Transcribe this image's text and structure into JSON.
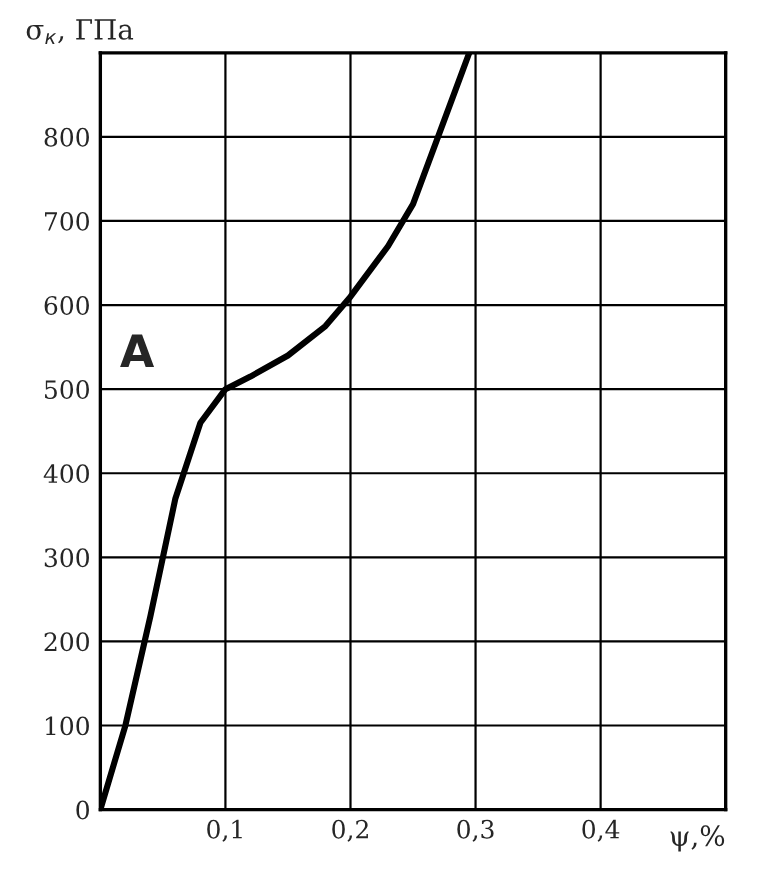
{
  "chart_data": {
    "type": "line",
    "xlabel": "ψ,%",
    "ylabel": "σ$_{к}$, ГПа",
    "x": [
      0,
      0.02,
      0.04,
      0.06,
      0.08,
      0.1,
      0.12,
      0.15,
      0.18,
      0.2,
      0.23,
      0.25,
      0.27,
      0.29,
      0.295
    ],
    "series": [
      {
        "color": "#000000",
        "values": [
          0,
          100,
          230,
          370,
          460,
          500,
          515,
          540,
          575,
          610,
          670,
          720,
          800,
          880,
          900
        ]
      }
    ],
    "xlim": [
      0,
      0.5
    ],
    "ylim": [
      0,
      900
    ],
    "xticks": [
      {
        "value": 0.1,
        "label": "0,1"
      },
      {
        "value": 0.2,
        "label": "0,2"
      },
      {
        "value": 0.3,
        "label": "0,3"
      },
      {
        "value": 0.4,
        "label": "0,4"
      }
    ],
    "yticks": [
      0,
      100,
      200,
      300,
      400,
      500,
      600,
      700,
      800
    ],
    "annotations": [
      {
        "text": "A",
        "x": 0.1,
        "y": 500
      }
    ],
    "grid": true,
    "marker": "none",
    "line_style": "solid"
  }
}
